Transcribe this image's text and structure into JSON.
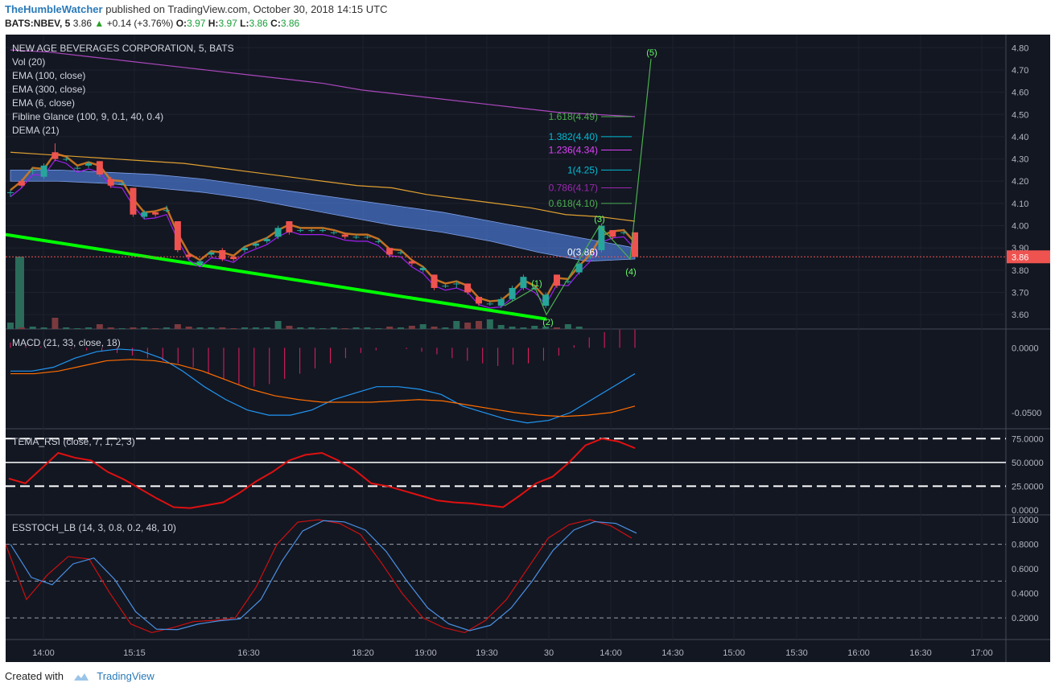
{
  "header": {
    "author": "TheHumbleWatcher",
    "published": "published on TradingView.com, October 30, 2018 14:15 UTC",
    "symbol": "BATS:NBEV, 5",
    "price": "3.86",
    "change": "+0.14 (+3.76%)",
    "o_label": "O:",
    "o": "3.97",
    "h_label": "H:",
    "h": "3.97",
    "l_label": "L:",
    "l": "3.86",
    "c_label": "C:",
    "c": "3.86"
  },
  "legend": {
    "title": "NEW AGE BEVERAGES CORPORATION, 5, BATS",
    "items": [
      "Vol (20)",
      "EMA (100, close)",
      "EMA (300, close)",
      "EMA (6, close)",
      "Fibline Glance (100, 9, 0.1, 40, 0.4)",
      "DEMA (21)"
    ]
  },
  "panes": {
    "macd": "MACD (21, 33, close, 18)",
    "rsi": "TEMA_RSI (close, 7, 1, 2, 3)",
    "stoch": "ESSTOCH_LB (14, 3, 0.8, 0.2, 48, 10)"
  },
  "price_badge": "3.86",
  "footer": {
    "created": "Created with",
    "brand": "TradingView"
  },
  "colors": {
    "up": "#26a69a",
    "down": "#ef5350",
    "bg": "#131722",
    "trend": "#00ff00"
  },
  "chart_data": {
    "type": "candlestick",
    "x_ticks": [
      "14:00",
      "15:15",
      "16:30",
      "18:20",
      "19:00",
      "19:30",
      "30",
      "14:00",
      "14:30",
      "15:00",
      "15:30",
      "16:00",
      "16:30",
      "17:00"
    ],
    "price_axis": {
      "ticks": [
        "4.80",
        "4.70",
        "4.60",
        "4.50",
        "4.40",
        "4.30",
        "4.20",
        "4.10",
        "4.00",
        "3.90",
        "3.80",
        "3.70",
        "3.60"
      ],
      "range": [
        3.55,
        4.83
      ]
    },
    "macd_axis": {
      "ticks": [
        "0.0000",
        "-0.0500"
      ]
    },
    "rsi_axis": {
      "ticks": [
        "75.0000",
        "50.0000",
        "25.0000",
        "0.0000"
      ]
    },
    "stoch_axis": {
      "ticks": [
        "1.0000",
        "0.8000",
        "0.6000",
        "0.4000",
        "0.2000"
      ]
    },
    "candles": [
      {
        "o": 4.15,
        "c": 4.15,
        "h": 4.16,
        "l": 4.13
      },
      {
        "o": 4.2,
        "c": 4.18,
        "h": 4.21,
        "l": 4.17
      },
      {
        "o": 4.25,
        "c": 4.25,
        "h": 4.26,
        "l": 4.23
      },
      {
        "o": 4.22,
        "c": 4.27,
        "h": 4.28,
        "l": 4.21
      },
      {
        "o": 4.33,
        "c": 4.3,
        "h": 4.37,
        "l": 4.29
      },
      {
        "o": 4.3,
        "c": 4.3,
        "h": 4.31,
        "l": 4.29
      },
      {
        "o": 4.26,
        "c": 4.26,
        "h": 4.27,
        "l": 4.25
      },
      {
        "o": 4.27,
        "c": 4.28,
        "h": 4.29,
        "l": 4.26
      },
      {
        "o": 4.29,
        "c": 4.23,
        "h": 4.29,
        "l": 4.22
      },
      {
        "o": 4.21,
        "c": 4.18,
        "h": 4.22,
        "l": 4.17
      },
      {
        "o": 4.19,
        "c": 4.19,
        "h": 4.2,
        "l": 4.18
      },
      {
        "o": 4.17,
        "c": 4.05,
        "h": 4.17,
        "l": 4.04
      },
      {
        "o": 4.04,
        "c": 4.06,
        "h": 4.07,
        "l": 4.03
      },
      {
        "o": 4.06,
        "c": 4.05,
        "h": 4.07,
        "l": 4.04
      },
      {
        "o": 4.07,
        "c": 4.07,
        "h": 4.09,
        "l": 4.06
      },
      {
        "o": 4.02,
        "c": 3.89,
        "h": 4.02,
        "l": 3.88
      },
      {
        "o": 3.87,
        "c": 3.86,
        "h": 3.88,
        "l": 3.85
      },
      {
        "o": 3.83,
        "c": 3.84,
        "h": 3.85,
        "l": 3.82
      },
      {
        "o": 3.87,
        "c": 3.88,
        "h": 3.89,
        "l": 3.86
      },
      {
        "o": 3.89,
        "c": 3.85,
        "h": 3.9,
        "l": 3.84
      },
      {
        "o": 3.86,
        "c": 3.85,
        "h": 3.87,
        "l": 3.84
      },
      {
        "o": 3.89,
        "c": 3.9,
        "h": 3.91,
        "l": 3.88
      },
      {
        "o": 3.91,
        "c": 3.92,
        "h": 3.93,
        "l": 3.9
      },
      {
        "o": 3.93,
        "c": 3.94,
        "h": 3.95,
        "l": 3.92
      },
      {
        "o": 3.95,
        "c": 3.99,
        "h": 4.0,
        "l": 3.94
      },
      {
        "o": 4.02,
        "c": 3.97,
        "h": 4.02,
        "l": 3.96
      },
      {
        "o": 3.98,
        "c": 3.98,
        "h": 3.99,
        "l": 3.97
      },
      {
        "o": 3.98,
        "c": 3.98,
        "h": 3.99,
        "l": 3.97
      },
      {
        "o": 3.98,
        "c": 3.98,
        "h": 3.99,
        "l": 3.97
      },
      {
        "o": 3.97,
        "c": 3.97,
        "h": 3.98,
        "l": 3.96
      },
      {
        "o": 3.96,
        "c": 3.95,
        "h": 3.97,
        "l": 3.94
      },
      {
        "o": 3.95,
        "c": 3.95,
        "h": 3.96,
        "l": 3.94
      },
      {
        "o": 3.95,
        "c": 3.95,
        "h": 3.96,
        "l": 3.94
      },
      {
        "o": 3.93,
        "c": 3.93,
        "h": 3.94,
        "l": 3.92
      },
      {
        "o": 3.9,
        "c": 3.87,
        "h": 3.9,
        "l": 3.86
      },
      {
        "o": 3.88,
        "c": 3.88,
        "h": 3.89,
        "l": 3.87
      },
      {
        "o": 3.84,
        "c": 3.83,
        "h": 3.85,
        "l": 3.82
      },
      {
        "o": 3.8,
        "c": 3.81,
        "h": 3.82,
        "l": 3.79
      },
      {
        "o": 3.78,
        "c": 3.72,
        "h": 3.78,
        "l": 3.71
      },
      {
        "o": 3.73,
        "c": 3.73,
        "h": 3.74,
        "l": 3.72
      },
      {
        "o": 3.74,
        "c": 3.74,
        "h": 3.75,
        "l": 3.72
      },
      {
        "o": 3.74,
        "c": 3.7,
        "h": 3.74,
        "l": 3.69
      },
      {
        "o": 3.68,
        "c": 3.65,
        "h": 3.68,
        "l": 3.64
      },
      {
        "o": 3.65,
        "c": 3.65,
        "h": 3.66,
        "l": 3.64
      },
      {
        "o": 3.64,
        "c": 3.67,
        "h": 3.68,
        "l": 3.63
      },
      {
        "o": 3.67,
        "c": 3.72,
        "h": 3.73,
        "l": 3.66
      },
      {
        "o": 3.72,
        "c": 3.77,
        "h": 3.78,
        "l": 3.71
      },
      {
        "o": 3.72,
        "c": 3.72,
        "h": 3.73,
        "l": 3.71
      },
      {
        "o": 3.64,
        "c": 3.69,
        "h": 3.7,
        "l": 3.63
      },
      {
        "o": 3.78,
        "c": 3.73,
        "h": 3.78,
        "l": 3.72
      },
      {
        "o": 3.75,
        "c": 3.75,
        "h": 3.76,
        "l": 3.74
      },
      {
        "o": 3.79,
        "c": 3.83,
        "h": 3.84,
        "l": 3.78
      },
      {
        "o": 3.86,
        "c": 3.86,
        "h": 3.87,
        "l": 3.85
      },
      {
        "o": 3.89,
        "c": 4.0,
        "h": 4.01,
        "l": 3.88
      },
      {
        "o": 3.98,
        "c": 3.95,
        "h": 3.98,
        "l": 3.94
      },
      {
        "o": 3.97,
        "c": 3.97,
        "h": 3.98,
        "l": 3.96
      },
      {
        "o": 3.97,
        "c": 3.86,
        "h": 3.97,
        "l": 3.86
      }
    ],
    "ema100": [
      4.33,
      4.32,
      4.31,
      4.3,
      4.29,
      4.28,
      4.26,
      4.24,
      4.22,
      4.2,
      4.18,
      4.17,
      4.14,
      4.12,
      4.1,
      4.08,
      4.05,
      4.04,
      4.02
    ],
    "ema300": [
      4.79,
      4.78,
      4.76,
      4.74,
      4.72,
      4.7,
      4.68,
      4.66,
      4.64,
      4.61,
      4.59,
      4.57,
      4.55,
      4.53,
      4.51,
      4.5,
      4.49
    ],
    "fib_levels": [
      {
        "label": "1.618(4.49)",
        "value": 4.49,
        "color": "#4caf50"
      },
      {
        "label": "1.382(4.40)",
        "value": 4.4,
        "color": "#00bcd4"
      },
      {
        "label": "1.236(4.34)",
        "value": 4.34,
        "color": "#e040fb"
      },
      {
        "label": "1(4.25)",
        "value": 4.25,
        "color": "#00bcd4"
      },
      {
        "label": "0.786(4.17)",
        "value": 4.17,
        "color": "#9c27b0"
      },
      {
        "label": "0.618(4.10)",
        "value": 4.1,
        "color": "#4caf50"
      },
      {
        "label": "0(3.86)",
        "value": 3.86,
        "color": "#ffffff"
      }
    ],
    "waves": [
      "(1)",
      "(2)",
      "(3)",
      "(4)",
      "(5)"
    ],
    "macd_hist": [
      0.004,
      0.002,
      0.001,
      0.0,
      -0.001,
      -0.002,
      -0.003,
      -0.004,
      -0.006,
      -0.008,
      -0.01,
      -0.012,
      -0.015,
      -0.02,
      -0.024,
      -0.028,
      -0.03,
      -0.028,
      -0.024,
      -0.02,
      -0.016,
      -0.012,
      -0.008,
      -0.004,
      -0.002,
      0.0,
      -0.001,
      -0.003,
      -0.005,
      -0.008,
      -0.01,
      -0.012,
      -0.014,
      -0.013,
      -0.012,
      -0.01,
      -0.006,
      0.002,
      0.008,
      0.012,
      0.014,
      0.014
    ],
    "rsi_values": [
      33,
      28,
      44,
      60,
      55,
      52,
      40,
      32,
      22,
      12,
      3,
      2,
      5,
      8,
      18,
      30,
      40,
      52,
      58,
      60,
      52,
      42,
      28,
      25,
      20,
      15,
      10,
      8,
      7,
      5,
      3,
      15,
      28,
      35,
      50,
      68,
      75,
      72,
      65
    ],
    "stoch_values": [
      0.8,
      0.35,
      0.55,
      0.7,
      0.68,
      0.4,
      0.15,
      0.08,
      0.12,
      0.17,
      0.18,
      0.2,
      0.45,
      0.8,
      0.98,
      1.0,
      0.97,
      0.88,
      0.65,
      0.4,
      0.2,
      0.12,
      0.08,
      0.18,
      0.35,
      0.6,
      0.85,
      0.96,
      1.0,
      0.95,
      0.85
    ]
  }
}
